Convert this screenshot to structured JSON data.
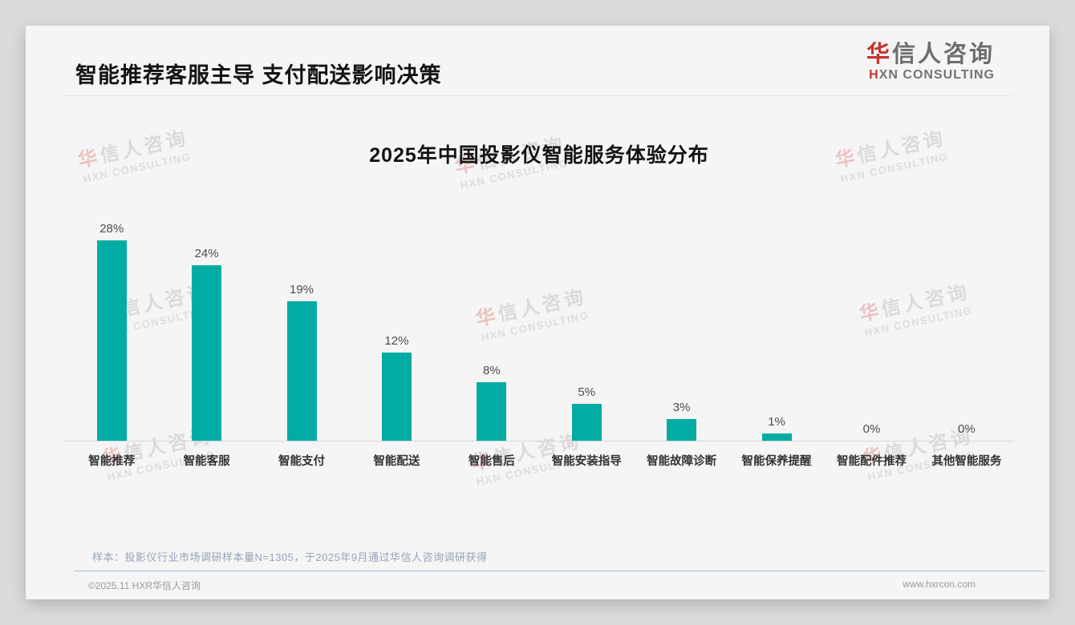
{
  "header": {
    "title": "智能推荐客服主导 支付配送影响决策",
    "logo": {
      "cn_first": "华",
      "cn_rest": "信人咨询",
      "en_first": "H",
      "en_rest": "XN CONSULTING"
    }
  },
  "chart_data": {
    "type": "bar",
    "title": "2025年中国投影仪智能服务体验分布",
    "categories": [
      "智能推荐",
      "智能客服",
      "智能支付",
      "智能配送",
      "智能售后",
      "智能安装指导",
      "智能故障诊断",
      "智能保养提醒",
      "智能配件推荐",
      "其他智能服务"
    ],
    "values": [
      28,
      24,
      19,
      12,
      8,
      5,
      3,
      1,
      0,
      0
    ],
    "value_labels": [
      "28%",
      "24%",
      "19%",
      "12%",
      "8%",
      "5%",
      "3%",
      "1%",
      "0%",
      "0%"
    ],
    "unit": "%",
    "bar_color": "#00ACA3",
    "xlabel": "",
    "ylabel": "",
    "ylim": [
      0,
      30
    ],
    "grid": false,
    "legend": "none"
  },
  "footnote": "样本：投影仪行业市场调研样本量N=1305，于2025年9月通过华信人咨询调研获得",
  "footer": {
    "copyright": "©2025.11 HXR华信人咨询",
    "website": "www.hxrcon.com"
  },
  "watermark": {
    "cn_first": "华",
    "cn_rest": "信人咨询",
    "en": "HXN CONSULTING"
  }
}
